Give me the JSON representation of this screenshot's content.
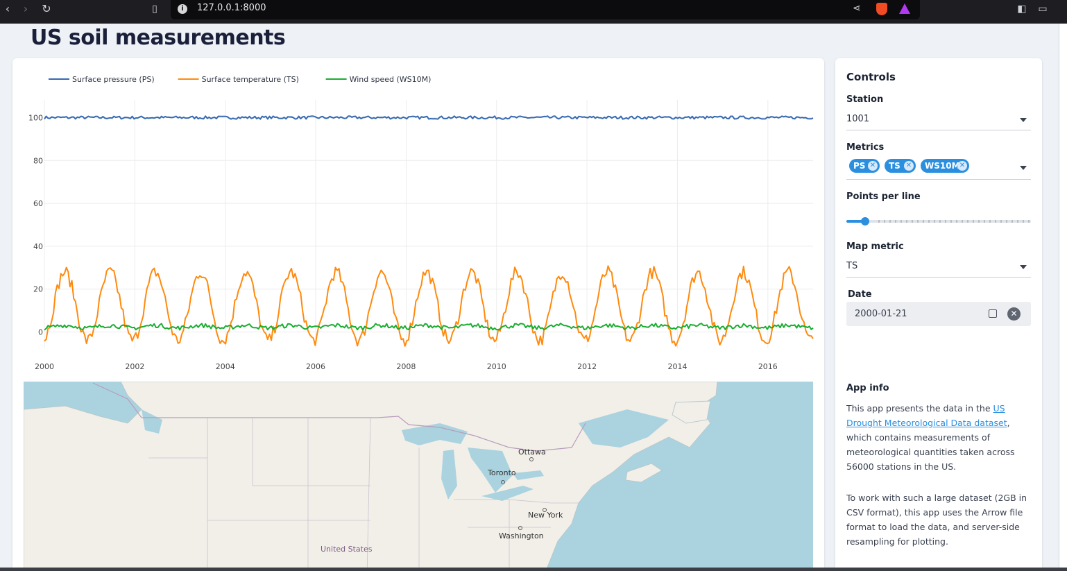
{
  "browser": {
    "url": "127.0.0.1:8000",
    "icons": [
      "back-icon",
      "forward-icon",
      "reload-icon",
      "bookmark-icon",
      "info-icon",
      "share-icon",
      "brave-shield-icon",
      "brave-rewards-icon",
      "sidebar-icon",
      "wallet-icon"
    ]
  },
  "page": {
    "title": "US soil measurements"
  },
  "chart_data": {
    "type": "line",
    "title": "",
    "xlabel": "",
    "ylabel": "",
    "x_ticks": [
      "2000",
      "2002",
      "2004",
      "2006",
      "2008",
      "2010",
      "2012",
      "2014",
      "2016"
    ],
    "y_ticks": [
      "0",
      "20",
      "40",
      "60",
      "80",
      "100"
    ],
    "xlim": [
      2000,
      2017
    ],
    "ylim": [
      -5,
      105
    ],
    "grid": true,
    "legend_position": "top-left",
    "series": [
      {
        "name": "Surface pressure (PS)",
        "color": "#3569b0",
        "mean": 100,
        "amplitude": 0,
        "noise": 0.7
      },
      {
        "name": "Surface temperature  (TS)",
        "color": "#ff8a0d",
        "mean": 12,
        "amplitude": 16,
        "noise": 3
      },
      {
        "name": "Wind speed (WS10M)",
        "color": "#19ad30",
        "mean": 2.5,
        "amplitude": 0.6,
        "noise": 1
      }
    ]
  },
  "map": {
    "labels": [
      "Ottawa",
      "Toronto",
      "New York",
      "Washington",
      "United States"
    ],
    "water_color": "#aad3df",
    "land_color": "#f2efe9"
  },
  "controls": {
    "heading": "Controls",
    "station": {
      "label": "Station",
      "value": "1001"
    },
    "metrics": {
      "label": "Metrics",
      "chips": [
        "PS",
        "TS",
        "WS10M"
      ]
    },
    "points": {
      "label": "Points per line",
      "value_fraction": 0.1
    },
    "map_metric": {
      "label": "Map metric",
      "value": "TS"
    },
    "date": {
      "label": "Date",
      "value": "2000-01-21"
    }
  },
  "app_info": {
    "heading": "App info",
    "p1_before": "This app presents the data in the ",
    "p1_link": "US Drought Meteorological Data dataset",
    "p1_after": ", which contains measurements of meteorological quantities taken across 56000 stations in the US.",
    "p2": "To work with such a large dataset (2GB in CSV format), this app uses the Arrow file format to load the data, and server-side resampling for plotting."
  }
}
